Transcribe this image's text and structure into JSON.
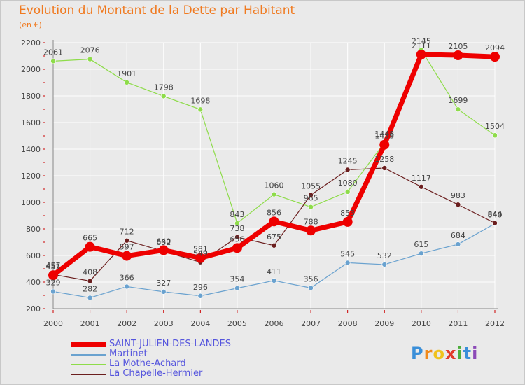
{
  "header": {
    "title": "Evolution du Montant de la Dette par Habitant",
    "unit": "(en €)"
  },
  "colors": {
    "title": "#f07a20",
    "background": "#eaeaea",
    "grid": "#ffffff",
    "axis": "#888888",
    "label": "#444444"
  },
  "chart_data": {
    "type": "line",
    "x": [
      2000,
      2001,
      2002,
      2003,
      2004,
      2005,
      2006,
      2007,
      2008,
      2009,
      2010,
      2011,
      2012
    ],
    "ylim": [
      200,
      2200
    ],
    "yticks": [
      200,
      400,
      600,
      800,
      1000,
      1200,
      1400,
      1600,
      1800,
      2000,
      2200
    ],
    "grid": true,
    "legend_position": "bottom-left",
    "series": [
      {
        "name": "Martinet",
        "color": "#6aa2cf",
        "width": 1.2,
        "marker": 3.5,
        "values": [
          329,
          282,
          366,
          327,
          296,
          354,
          411,
          356,
          545,
          532,
          615,
          684,
          840
        ]
      },
      {
        "name": "La Mothe-Achard",
        "color": "#8edc4a",
        "width": 1.2,
        "marker": 3.5,
        "values": [
          2061,
          2076,
          1901,
          1798,
          1698,
          843,
          1060,
          965,
          1080,
          1448,
          2145,
          1699,
          1504
        ]
      },
      {
        "name": "La Chapelle-Hermier",
        "color": "#6b1e1e",
        "width": 1.2,
        "marker": 3.5,
        "values": [
          457,
          408,
          712,
          632,
          549,
          738,
          675,
          1055,
          1245,
          1258,
          1117,
          983,
          844
        ]
      },
      {
        "name": "SAINT-JULIEN-DES-LANDES",
        "color": "#ee0000",
        "width": 7,
        "marker": 7,
        "values": [
          451,
          665,
          597,
          640,
          581,
          656,
          856,
          788,
          853,
          1433,
          2111,
          2105,
          2094
        ]
      }
    ]
  },
  "legend": {
    "items": [
      {
        "label": "SAINT-JULIEN-DES-LANDES",
        "color": "#ee0000",
        "label_color": "#5555dd"
      },
      {
        "label": "Martinet",
        "color": "#6aa2cf",
        "label_color": "#5555dd"
      },
      {
        "label": "La Mothe-Achard",
        "color": "#8edc4a",
        "label_color": "#5555dd"
      },
      {
        "label": "La Chapelle-Hermier",
        "color": "#6b1e1e",
        "label_color": "#5555dd"
      }
    ]
  },
  "logo": {
    "letters": [
      "P",
      "r",
      "o",
      "x",
      "i",
      "t",
      "i"
    ],
    "colors": [
      "#3a8fd9",
      "#f08a1c",
      "#f0c21c",
      "#e23a2a",
      "#4cae3c",
      "#3a8fd9",
      "#8c4ab8"
    ]
  }
}
